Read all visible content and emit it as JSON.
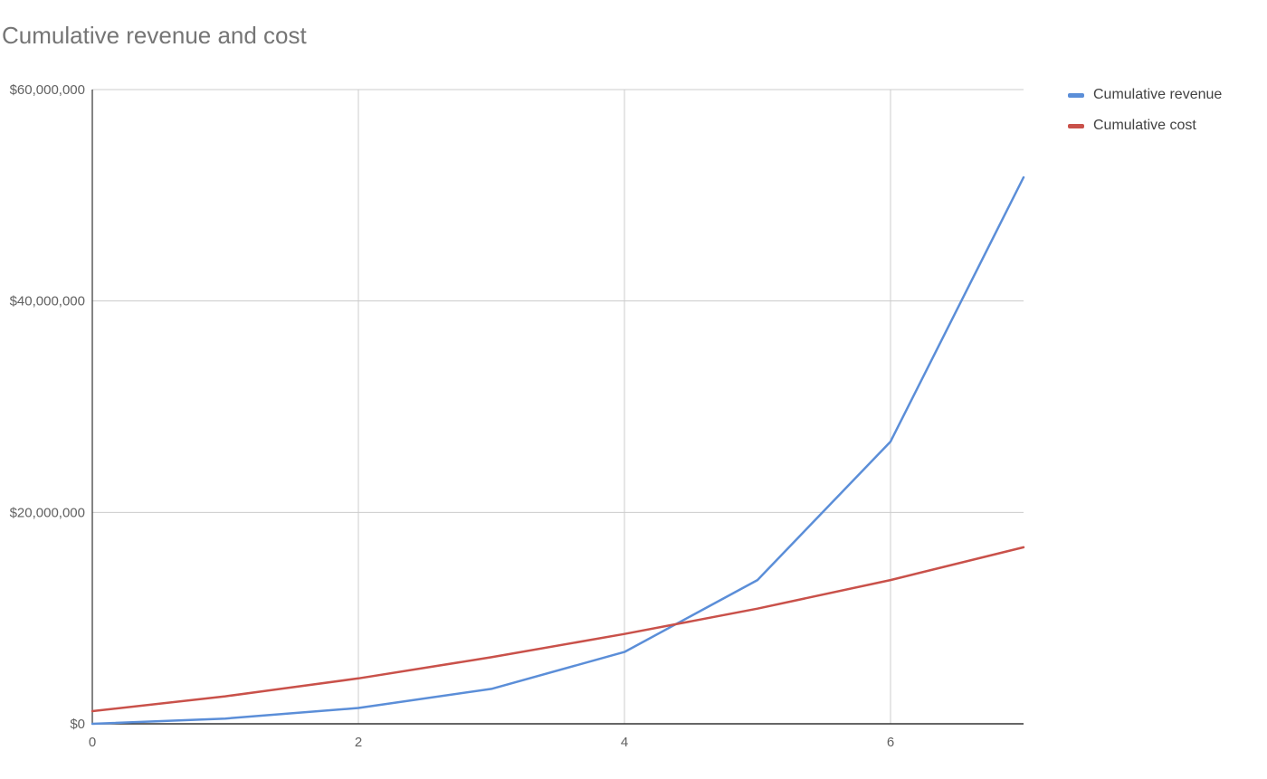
{
  "chart_data": {
    "type": "line",
    "title": "Cumulative revenue and cost",
    "xlabel": "",
    "ylabel": "",
    "x": [
      0,
      1,
      2,
      3,
      4,
      5,
      6,
      7
    ],
    "xlim": [
      0,
      7
    ],
    "ylim": [
      0,
      60000000
    ],
    "x_ticks": [
      0,
      2,
      4,
      6
    ],
    "x_tick_labels": [
      "0",
      "2",
      "4",
      "6"
    ],
    "y_ticks": [
      0,
      20000000,
      40000000,
      60000000
    ],
    "y_tick_labels": [
      "$0",
      "$20,000,000",
      "$40,000,000",
      "$60,000,000"
    ],
    "grid": true,
    "legend_position": "top-right",
    "series": [
      {
        "name": "Cumulative revenue",
        "color": "#5b8ed8",
        "values": [
          0,
          500000,
          1500000,
          3300000,
          6800000,
          13600000,
          26700000,
          51700000
        ]
      },
      {
        "name": "Cumulative cost",
        "color": "#c9514a",
        "values": [
          1200000,
          2600000,
          4300000,
          6300000,
          8500000,
          10900000,
          13600000,
          16700000
        ]
      }
    ]
  }
}
